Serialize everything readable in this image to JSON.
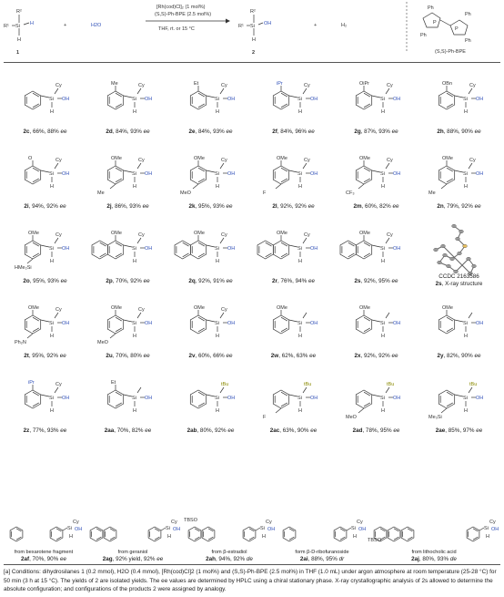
{
  "scheme": {
    "reactant_number": "1",
    "water": "H2O",
    "plus1": "+",
    "plus2": "+",
    "cond_line1": "[Rh(cod)Cl]₂ (1 mol%)",
    "cond_line2": "(S,S)-Ph-BPE (2.5 mol%)",
    "cond_line3": "THF, rt. or 15 °C",
    "product_number": "2",
    "hydrogen": "H₂",
    "ligand_name": "(S,S)-Ph-BPE",
    "R1": "R¹",
    "R2": "R²",
    "Si": "Si",
    "H": "H",
    "OH": "OH",
    "Ph": "Ph"
  },
  "products": [
    {
      "id": "2c",
      "yield": "66%",
      "ee": "88%",
      "sub": "H",
      "tag": "ee"
    },
    {
      "id": "2d",
      "yield": "84%",
      "ee": "93%",
      "sub": "Me",
      "tag": "ee"
    },
    {
      "id": "2e",
      "yield": "84%",
      "ee": "93%",
      "sub": "Et",
      "tag": "ee"
    },
    {
      "id": "2f",
      "yield": "84%",
      "ee": "96%",
      "sub": "iPr",
      "tag": "ee"
    },
    {
      "id": "2g",
      "yield": "87%",
      "ee": "93%",
      "sub": "OiPr",
      "tag": "ee"
    },
    {
      "id": "2h",
      "yield": "88%",
      "ee": "90%",
      "sub": "OBn",
      "tag": "ee"
    },
    {
      "id": "2i",
      "yield": "94%",
      "ee": "92%",
      "sub": "OCH2CH2OMe",
      "tag": "ee"
    },
    {
      "id": "2j",
      "yield": "86%",
      "ee": "93%",
      "sub": "OMe/Me",
      "tag": "ee"
    },
    {
      "id": "2k",
      "yield": "95%",
      "ee": "93%",
      "sub": "OMe/MeO",
      "tag": "ee"
    },
    {
      "id": "2l",
      "yield": "92%",
      "ee": "92%",
      "sub": "OMe/F",
      "tag": "ee"
    },
    {
      "id": "2m",
      "yield": "60%",
      "ee": "82%",
      "sub": "OMe/CF3",
      "tag": "ee"
    },
    {
      "id": "2n",
      "yield": "79%",
      "ee": "92%",
      "sub": "OMe/Me",
      "tag": "ee"
    },
    {
      "id": "2o",
      "yield": "95%",
      "ee": "93%",
      "sub": "HMe2Si",
      "tag": "ee"
    },
    {
      "id": "2p",
      "yield": "70%",
      "ee": "92%",
      "sub": "naphthyl",
      "tag": "ee"
    },
    {
      "id": "2q",
      "yield": "92%",
      "ee": "91%",
      "sub": "fluorenyl",
      "tag": "ee"
    },
    {
      "id": "2r",
      "yield": "76%",
      "ee": "94%",
      "sub": "benzofuranyl",
      "tag": "ee"
    },
    {
      "id": "2s",
      "yield": "92%",
      "ee": "95%",
      "sub": "carbazolyl",
      "tag": "ee"
    },
    {
      "id": "2t",
      "yield": "95%",
      "ee": "92%",
      "sub": "Ph2N",
      "tag": "ee"
    },
    {
      "id": "2u",
      "yield": "70%",
      "ee": "80%",
      "sub": "pyridyl",
      "tag": "ee"
    },
    {
      "id": "2v",
      "yield": "60%",
      "ee": "66%",
      "sub": "thienyl",
      "tag": "ee"
    },
    {
      "id": "2w",
      "yield": "62%",
      "ee": "63%",
      "sub": "cBu",
      "tag": "ee"
    },
    {
      "id": "2x",
      "yield": "92%",
      "ee": "92%",
      "sub": "cPent",
      "tag": "ee"
    },
    {
      "id": "2y",
      "yield": "82%",
      "ee": "90%",
      "sub": "cHept",
      "tag": "ee"
    },
    {
      "id": "2z",
      "yield": "77%",
      "ee": "93%",
      "sub": "iPr",
      "tag": "ee"
    },
    {
      "id": "2aa",
      "yield": "70%",
      "ee": "82%",
      "sub": "nHex",
      "tag": "ee"
    },
    {
      "id": "2ab",
      "yield": "80%",
      "ee": "92%",
      "sub": "tBu",
      "tag": "ee"
    },
    {
      "id": "2ac",
      "yield": "63%",
      "ee": "90%",
      "sub": "tBu/F",
      "tag": "ee"
    },
    {
      "id": "2ad",
      "yield": "78%",
      "ee": "95%",
      "sub": "tBu/MeO",
      "tag": "ee"
    },
    {
      "id": "2ae",
      "yield": "85%",
      "ee": "97%",
      "sub": "tBu/Me3Si",
      "tag": "ee"
    }
  ],
  "xray": {
    "ccdc": "CCDC 2163586",
    "caption_id": "2s",
    "caption": ", X-ray structure"
  },
  "natural": [
    {
      "id": "2af",
      "yield": "70%",
      "ee": "90%",
      "tag": "ee",
      "source": "from bexarotene fragment"
    },
    {
      "id": "2ag",
      "yield": "92% yield",
      "ee": "92%",
      "tag": "ee",
      "source": "from geraniol"
    },
    {
      "id": "2ah",
      "yield": "94%",
      "ee": "92%",
      "tag": "de",
      "source": "from β-estradiol"
    },
    {
      "id": "2ai",
      "yield": "88%",
      "ee": "95%",
      "tag": "dr",
      "source": "form β-D-ribofuranoside"
    },
    {
      "id": "2aj",
      "yield": "80%",
      "ee": "93%",
      "tag": "de",
      "source": "from lithocholic acid"
    }
  ],
  "labels": {
    "Cy": "Cy",
    "OH": "OH",
    "H": "H",
    "Si": "Si",
    "OMe": "OMe",
    "Me": "Me",
    "Et": "Et",
    "iPr": "iPr",
    "OiPr": "OiPr",
    "OBn": "OBn",
    "MeO": "MeO",
    "F": "F",
    "CF3": "CF₃",
    "HMe2Si": "HMe₂Si",
    "Bn": "Bn",
    "N": "N",
    "Ph2N": "Ph₂N",
    "tBu": "tBu",
    "Me3Si": "Me₃Si",
    "TBSO": "TBSO",
    "S": "S",
    "O": "O"
  },
  "footnote": "[a] Conditions: dihydrosilanes 1 (0.2 mmol), H2O (0.4 mmol), [Rh(cod)Cl]2 (1 mol%) and (S,S)-Ph-BPE (2.5 mol%) in THF (1.0 mL) under argon atmosphere at room temperature (25-28 °C) for 50 min (3 h at 15 °C). The yields of 2 are isolated yields. The ee values are determined by HPLC using a chiral stationary phase. X-ray crystallographic analysis of 2s allowed to determine the absolute configuration; and configurations of the products 2 were assigned by analogy."
}
